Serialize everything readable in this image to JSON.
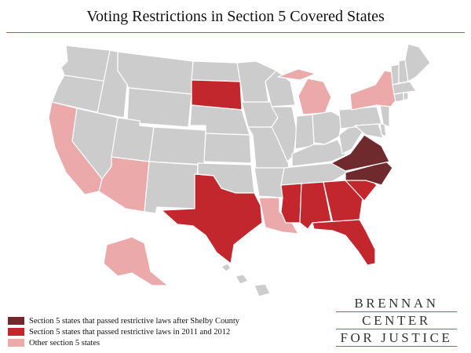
{
  "title": "Voting Restrictions in Section 5 Covered States",
  "colors": {
    "not_covered": "#cccccc",
    "after_shelby": "#6e2a2c",
    "restrictive_2011_2012": "#c1272d",
    "other_section5": "#eba9aa",
    "state_border": "#ffffff",
    "title_rule": "#c94d52"
  },
  "legend": [
    {
      "key": "after_shelby",
      "label": "Section 5 states that passed restrictive laws after Shelby County"
    },
    {
      "key": "restrictive_2011_2012",
      "label": "Section 5 states that passed restrictive laws in 2011 and 2012"
    },
    {
      "key": "other_section5",
      "label": "Other section 5 states"
    }
  ],
  "brand": {
    "line1": "BRENNAN",
    "line2": "CENTER",
    "line3": "FOR JUSTICE"
  },
  "state_categories": {
    "VA": "after_shelby",
    "NC": "after_shelby",
    "TX": "restrictive_2011_2012",
    "MS": "restrictive_2011_2012",
    "AL": "restrictive_2011_2012",
    "GA": "restrictive_2011_2012",
    "SC": "restrictive_2011_2012",
    "FL": "restrictive_2011_2012",
    "SD": "restrictive_2011_2012",
    "CA": "other_section5",
    "AZ": "other_section5",
    "LA": "other_section5",
    "MI": "other_section5",
    "NY": "other_section5",
    "AK": "other_section5",
    "WA": "not_covered",
    "OR": "not_covered",
    "ID": "not_covered",
    "MT": "not_covered",
    "WY": "not_covered",
    "NV": "not_covered",
    "UT": "not_covered",
    "CO": "not_covered",
    "NM": "not_covered",
    "ND": "not_covered",
    "NE": "not_covered",
    "KS": "not_covered",
    "OK": "not_covered",
    "MN": "not_covered",
    "IA": "not_covered",
    "MO": "not_covered",
    "AR": "not_covered",
    "WI": "not_covered",
    "IL": "not_covered",
    "IN": "not_covered",
    "OH": "not_covered",
    "KY": "not_covered",
    "TN": "not_covered",
    "WV": "not_covered",
    "PA": "not_covered",
    "MD": "not_covered",
    "DE": "not_covered",
    "NJ": "not_covered",
    "CT": "not_covered",
    "RI": "not_covered",
    "MA": "not_covered",
    "VT": "not_covered",
    "NH": "not_covered",
    "ME": "not_covered",
    "HI": "not_covered"
  }
}
